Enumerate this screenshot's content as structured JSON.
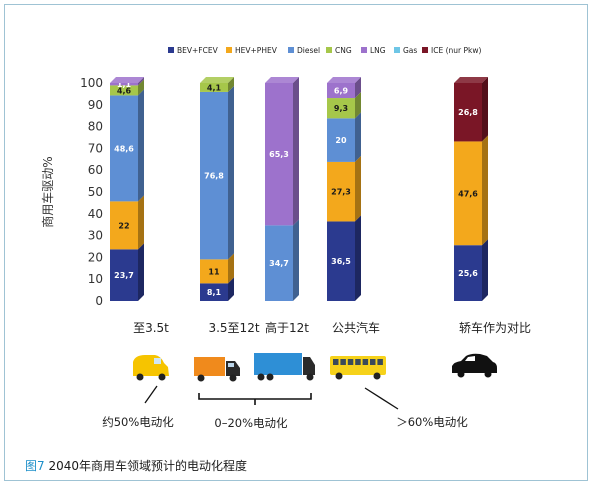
{
  "caption": {
    "figure_no": "图7",
    "text": " 2040年商用车领域预计的电动化程度"
  },
  "chart_data": {
    "type": "bar",
    "stacked": true,
    "ylabel": "商用车驱动%",
    "ylim": [
      0,
      100
    ],
    "yticks": [
      0,
      10,
      20,
      30,
      40,
      50,
      60,
      70,
      80,
      90,
      100
    ],
    "legend_position": "top",
    "categories": [
      "至3.5t",
      "3.5至12t",
      "高于12t",
      "公共汽车",
      "轿车作为对比"
    ],
    "series": [
      {
        "name": "BEV+FCEV",
        "color": "#2b3a8f",
        "values": [
          23.7,
          8.1,
          0,
          36.5,
          25.6
        ]
      },
      {
        "name": "HEV+PHEV",
        "color": "#f3a81c",
        "values": [
          22,
          11,
          0,
          27.3,
          47.6
        ]
      },
      {
        "name": "Diesel",
        "color": "#5e8fd4",
        "values": [
          48.6,
          76.8,
          34.7,
          20,
          0
        ]
      },
      {
        "name": "CNG",
        "color": "#a6c74a",
        "values": [
          4.6,
          4.1,
          0,
          9.3,
          0
        ]
      },
      {
        "name": "LNG",
        "color": "#9d72cc",
        "values": [
          1.1,
          0,
          65.3,
          6.9,
          0
        ]
      },
      {
        "name": "Gas",
        "color": "#6ec6e6",
        "values": [
          0,
          0,
          0,
          0,
          0
        ]
      },
      {
        "name": "ICE (nur Pkw)",
        "color": "#7a1626",
        "values": [
          0,
          0,
          0,
          0,
          26.8
        ]
      }
    ],
    "data_labels": [
      [
        "23,7",
        "22",
        "48,6",
        "4,6",
        "1,1",
        "",
        ""
      ],
      [
        "8,1",
        "11",
        "76,8",
        "4,1",
        "",
        "",
        ""
      ],
      [
        "",
        "",
        "34,7",
        "",
        "65,3",
        "",
        ""
      ],
      [
        "36,5",
        "27,3",
        "20",
        "9,3",
        "6,9",
        "",
        ""
      ],
      [
        "25,6",
        "47,6",
        "",
        "",
        "",
        "",
        "26,8"
      ]
    ]
  },
  "annotations": {
    "groups": [
      "约50%电动化",
      "0–20%电动化",
      "＞60%电动化"
    ]
  },
  "vehicles": [
    {
      "icon": "van-icon",
      "color": "#f6c400"
    },
    {
      "icon": "box-truck-icon",
      "color": "#f08a1c"
    },
    {
      "icon": "semi-truck-icon",
      "color": "#2e8fd6"
    },
    {
      "icon": "bus-icon",
      "color": "#f6d21a"
    },
    {
      "icon": "car-icon",
      "color": "#111111"
    }
  ]
}
